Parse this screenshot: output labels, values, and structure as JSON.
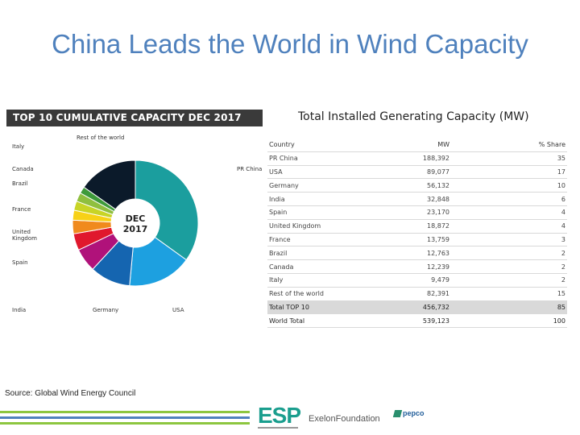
{
  "title": "China Leads the World in Wind Capacity",
  "chart_banner": "TOP 10 CUMULATIVE CAPACITY DEC 2017",
  "center_label": [
    "DEC",
    "2017"
  ],
  "table_title": "Total Installed Generating Capacity (MW)",
  "source": "Source: Global Wind Energy Council",
  "logos": {
    "esp": "ESP",
    "exelon": "ExelonFoundation",
    "pepco": "pepco"
  },
  "colors": {
    "title": "#4f81bd",
    "stripes": [
      "#8dc63f",
      "#4f81bd",
      "#8dc63f"
    ]
  },
  "chart_data": [
    {
      "type": "pie",
      "title": "TOP 10 CUMULATIVE CAPACITY DEC 2017",
      "slices": [
        {
          "label": "PR China",
          "value": 188392,
          "color": "#1b9e9e"
        },
        {
          "label": "USA",
          "value": 89077,
          "color": "#1da0e0"
        },
        {
          "label": "Germany",
          "value": 56132,
          "color": "#1565b0"
        },
        {
          "label": "India",
          "value": 32848,
          "color": "#b0127a"
        },
        {
          "label": "Spain",
          "value": 23170,
          "color": "#e0182d"
        },
        {
          "label": "United Kingdom",
          "value": 18872,
          "color": "#f08a1d"
        },
        {
          "label": "France",
          "value": 13759,
          "color": "#f7d117"
        },
        {
          "label": "Brazil",
          "value": 12763,
          "color": "#c8d426"
        },
        {
          "label": "Canada",
          "value": 12239,
          "color": "#8fbf3f"
        },
        {
          "label": "Italy",
          "value": 9479,
          "color": "#3e9a3a"
        },
        {
          "label": "Rest of the world",
          "value": 82391,
          "color": "#0b1a2a"
        }
      ]
    },
    {
      "type": "table",
      "title": "Total Installed Generating Capacity (MW)",
      "columns": [
        "Country",
        "MW",
        "% Share"
      ],
      "rows": [
        [
          "PR China",
          "188,392",
          "35"
        ],
        [
          "USA",
          "89,077",
          "17"
        ],
        [
          "Germany",
          "56,132",
          "10"
        ],
        [
          "India",
          "32,848",
          "6"
        ],
        [
          "Spain",
          "23,170",
          "4"
        ],
        [
          "United Kingdom",
          "18,872",
          "4"
        ],
        [
          "France",
          "13,759",
          "3"
        ],
        [
          "Brazil",
          "12,763",
          "2"
        ],
        [
          "Canada",
          "12,239",
          "2"
        ],
        [
          "Italy",
          "9,479",
          "2"
        ],
        [
          "Rest of the world",
          "82,391",
          "15"
        ],
        [
          "Total TOP 10",
          "456,732",
          "85"
        ],
        [
          "World Total",
          "539,123",
          "100"
        ]
      ]
    }
  ]
}
